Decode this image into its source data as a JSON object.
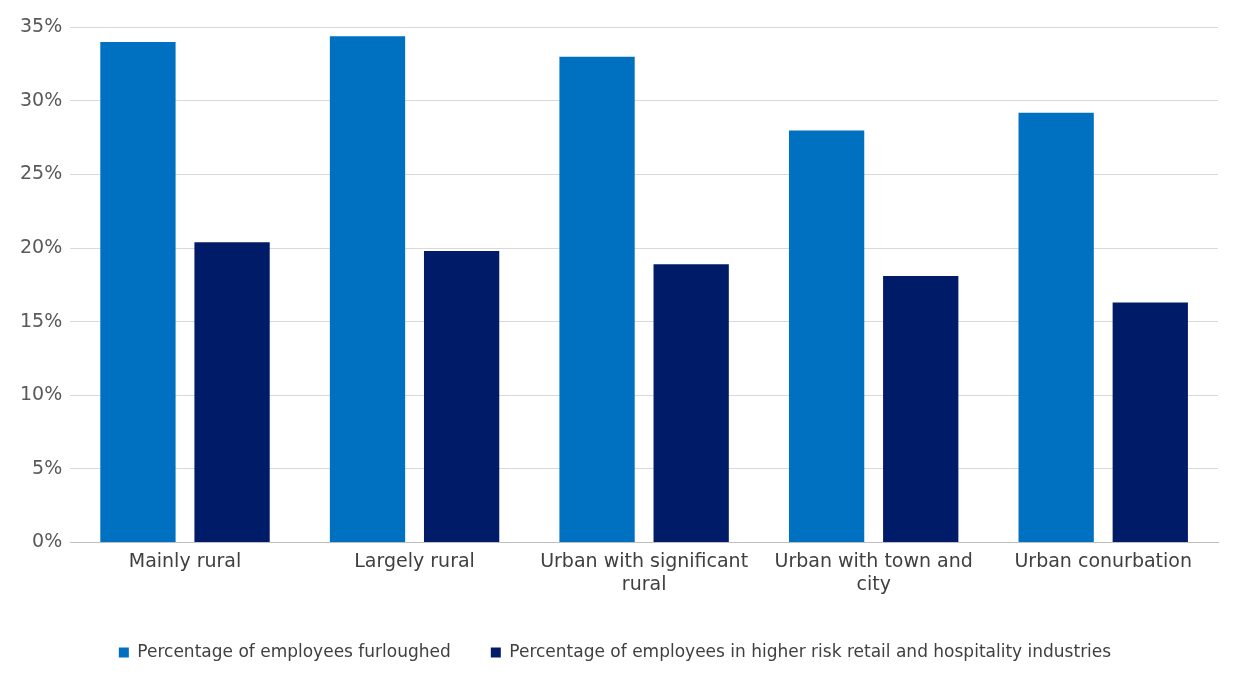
{
  "chart_data": {
    "type": "bar",
    "categories": [
      "Mainly rural",
      "Largely rural",
      "Urban with significant rural",
      "Urban with town and city",
      "Urban conurbation"
    ],
    "series": [
      {
        "name": "Percentage of employees furloughed",
        "color": "#0070c0",
        "values": [
          34.0,
          34.4,
          33.0,
          28.0,
          29.2
        ]
      },
      {
        "name": "Percentage of employees in higher risk retail and hospitality industries",
        "color": "#001c68",
        "values": [
          20.4,
          19.8,
          18.9,
          18.1,
          16.3
        ]
      }
    ],
    "ylim": [
      0,
      35
    ],
    "yticks": [
      {
        "value": 0,
        "label": "0%"
      },
      {
        "value": 5,
        "label": "5%"
      },
      {
        "value": 10,
        "label": "10%"
      },
      {
        "value": 15,
        "label": "15%"
      },
      {
        "value": 20,
        "label": "20%"
      },
      {
        "value": 25,
        "label": "25%"
      },
      {
        "value": 30,
        "label": "30%"
      },
      {
        "value": 35,
        "label": "35%"
      }
    ],
    "grid": "y",
    "legend": "bottom"
  }
}
